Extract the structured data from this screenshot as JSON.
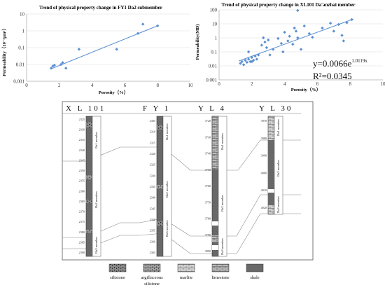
{
  "chart_data": [
    {
      "type": "scatter",
      "title": "Trend of physical property change in FY1 Da2 submember",
      "xlabel": "Porosity（%）",
      "ylabel": "Permeability（10⁻³μm²）",
      "xlim": [
        0,
        10
      ],
      "ylim": [
        0.001,
        10
      ],
      "yscale": "log",
      "xticks": [
        "0",
        "2",
        "4",
        "6",
        "8",
        "10"
      ],
      "yticks": [
        "0.001",
        "0.01",
        "0.1",
        "1",
        "10"
      ],
      "grid": true,
      "points": [
        {
          "x": 1.5,
          "y": 0.006
        },
        {
          "x": 1.6,
          "y": 0.008
        },
        {
          "x": 1.7,
          "y": 0.009
        },
        {
          "x": 2.1,
          "y": 0.01
        },
        {
          "x": 2.2,
          "y": 0.013
        },
        {
          "x": 2.4,
          "y": 0.006
        },
        {
          "x": 3.2,
          "y": 0.08
        },
        {
          "x": 5.5,
          "y": 0.08
        },
        {
          "x": 6.8,
          "y": 0.7
        },
        {
          "x": 7.1,
          "y": 2.5
        },
        {
          "x": 8.0,
          "y": 2.0
        }
      ],
      "trendline": {
        "x": [
          1.5,
          8.0
        ],
        "y": [
          0.0055,
          2.0
        ]
      },
      "marker_color": "#5b8fd0",
      "line_color": "#5b8fd0"
    },
    {
      "type": "scatter",
      "title": "Trend of physical property change in XL101 Da'anzhai member",
      "xlabel": "Porosity（%）",
      "ylabel": "Permeability(MD)",
      "xlim": [
        0,
        10
      ],
      "ylim": [
        0.001,
        100
      ],
      "yscale": "log",
      "xticks": [
        "0",
        "2",
        "4",
        "6",
        "8",
        "10"
      ],
      "yticks": [
        "0.001",
        "0.01",
        "0.1",
        "1",
        "10",
        "100"
      ],
      "grid": true,
      "equation": "y=0.0066e",
      "equation_exponent": "1.0119x",
      "r_squared": "R²=0.0345",
      "points": [
        {
          "x": 1.3,
          "y": 0.015
        },
        {
          "x": 1.4,
          "y": 0.02
        },
        {
          "x": 1.5,
          "y": 0.012
        },
        {
          "x": 1.6,
          "y": 0.025
        },
        {
          "x": 1.7,
          "y": 0.018
        },
        {
          "x": 1.8,
          "y": 0.03
        },
        {
          "x": 1.9,
          "y": 0.02
        },
        {
          "x": 2.0,
          "y": 0.04
        },
        {
          "x": 2.1,
          "y": 0.025
        },
        {
          "x": 2.2,
          "y": 0.05
        },
        {
          "x": 2.3,
          "y": 0.03
        },
        {
          "x": 2.4,
          "y": 0.06
        },
        {
          "x": 1.8,
          "y": 0.1
        },
        {
          "x": 2.0,
          "y": 0.02
        },
        {
          "x": 2.6,
          "y": 0.3
        },
        {
          "x": 2.7,
          "y": 1.0
        },
        {
          "x": 2.8,
          "y": 0.5
        },
        {
          "x": 2.9,
          "y": 0.2
        },
        {
          "x": 3.0,
          "y": 0.7
        },
        {
          "x": 3.1,
          "y": 0.06
        },
        {
          "x": 3.3,
          "y": 0.15
        },
        {
          "x": 3.6,
          "y": 0.9
        },
        {
          "x": 3.8,
          "y": 0.4
        },
        {
          "x": 3.9,
          "y": 0.1
        },
        {
          "x": 4.0,
          "y": 2.5
        },
        {
          "x": 4.2,
          "y": 0.6
        },
        {
          "x": 4.3,
          "y": 1.3
        },
        {
          "x": 4.5,
          "y": 0.35
        },
        {
          "x": 4.6,
          "y": 5.0
        },
        {
          "x": 4.7,
          "y": 3.0
        },
        {
          "x": 4.8,
          "y": 1.0
        },
        {
          "x": 4.8,
          "y": 90
        },
        {
          "x": 5.0,
          "y": 0.15
        },
        {
          "x": 5.2,
          "y": 7.0
        },
        {
          "x": 5.5,
          "y": 2.0
        },
        {
          "x": 5.7,
          "y": 1.1
        },
        {
          "x": 6.3,
          "y": 5.0
        },
        {
          "x": 6.8,
          "y": 11.0
        },
        {
          "x": 7.0,
          "y": 3.0
        },
        {
          "x": 7.3,
          "y": 9.0
        },
        {
          "x": 7.5,
          "y": 1.5
        },
        {
          "x": 7.6,
          "y": 0.6
        },
        {
          "x": 7.8,
          "y": 12.0
        },
        {
          "x": 8.1,
          "y": 20.0
        }
      ],
      "trendline": {
        "x": [
          1.2,
          8.2
        ],
        "y": [
          0.022,
          22
        ]
      },
      "marker_color": "#5b8fd0",
      "line_color": "#5b8fd0"
    }
  ],
  "correlation": {
    "wells": [
      {
        "name": "XL101",
        "display": "X L 101",
        "depths": [
          "2325",
          "2330",
          "2335",
          "2340",
          "2345",
          "2350",
          "2355",
          "2360",
          "2365",
          "2370",
          "2375",
          "2380",
          "2385",
          "2390"
        ],
        "members": [
          "Da1 member",
          "Da2 member",
          "Da3 member"
        ]
      },
      {
        "name": "FY1",
        "display": "F Y 1",
        "depths": [
          "2305",
          "2310",
          "2315",
          "2320",
          "2325",
          "2330",
          "2335",
          "2340",
          "2345",
          "2350",
          "2355",
          "2360",
          "2365"
        ],
        "members": [
          "Da1 member",
          "Da2 member",
          "Da3 member"
        ]
      },
      {
        "name": "YL4",
        "display": "Y L 4",
        "depths": [
          "3720",
          "3730",
          "3740",
          "3750",
          "3760",
          "3770",
          "3780",
          "3790",
          "3800"
        ],
        "members": [
          "Da1 member",
          "Da2 member",
          "Da3 member"
        ]
      },
      {
        "name": "YL30",
        "display": "Y L 30",
        "depths": [
          "3970",
          "3980",
          "3990",
          "4000",
          "4010",
          "4020"
        ],
        "members": [
          "Da1 member",
          "Da2 member",
          "Da3 member"
        ]
      }
    ],
    "legend": [
      {
        "key": "siltstone",
        "label": "siltstone"
      },
      {
        "key": "argillaceous",
        "label": "argillaceous",
        "label2": "siltstone"
      },
      {
        "key": "marlite",
        "label": "marlite"
      },
      {
        "key": "limestone",
        "label": "limestone"
      },
      {
        "key": "shale",
        "label": "shale"
      }
    ],
    "colors": {
      "shale": "#6a6a6a",
      "limestone": "#bdbdbd",
      "marlite": "#d2d2d2",
      "siltstone": "#888888"
    }
  }
}
